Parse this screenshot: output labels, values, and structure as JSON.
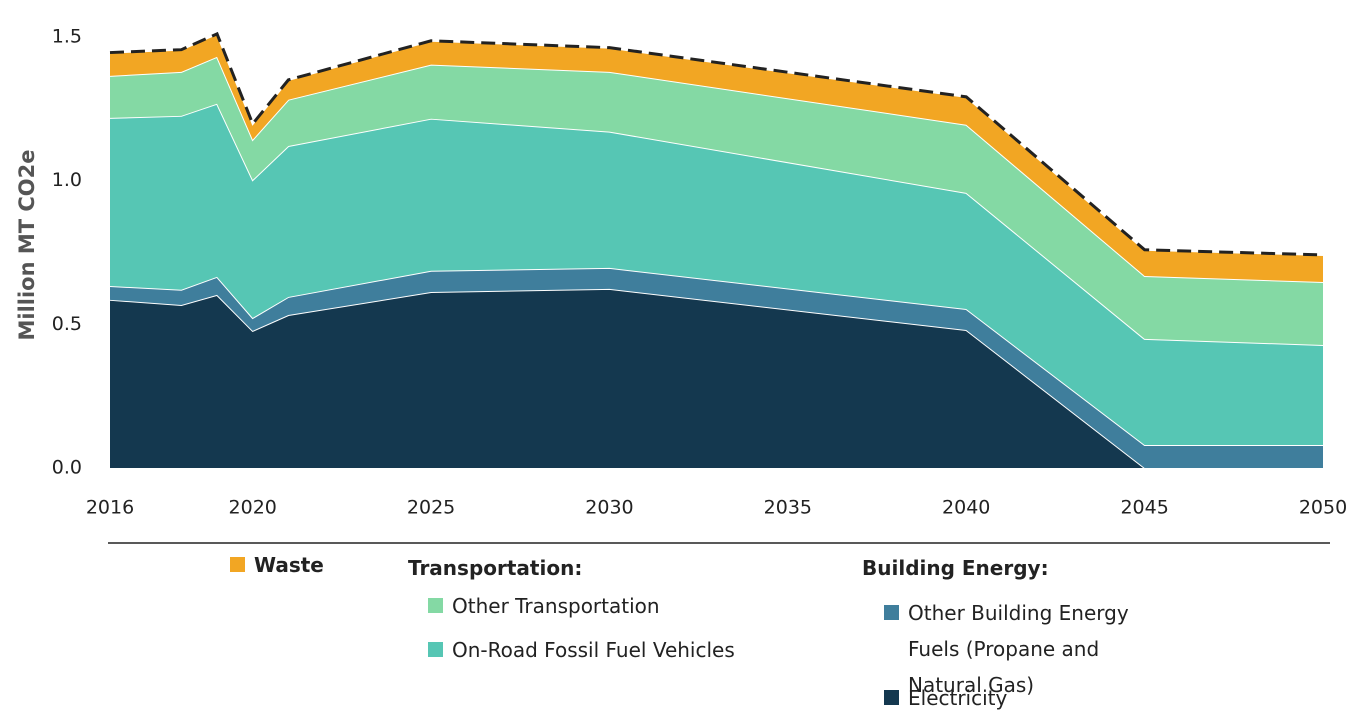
{
  "chart_data": {
    "type": "stacked_area",
    "y_label": "Million MT CO2e",
    "x": [
      2016,
      2018,
      2019,
      2020,
      2021,
      2025,
      2030,
      2040,
      2045,
      2050
    ],
    "series": [
      {
        "name": "Electricity",
        "color": "#14384f",
        "values": [
          0.585,
          0.567,
          0.602,
          0.477,
          0.532,
          0.612,
          0.623,
          0.48,
          0,
          0
        ]
      },
      {
        "name": "Other Building Energy Fuels (Propane and Natural Gas)",
        "color": "#3f7e9c",
        "values": [
          0.048,
          0.053,
          0.063,
          0.045,
          0.063,
          0.074,
          0.073,
          0.073,
          0.08,
          0.08
        ]
      },
      {
        "name": "On-Road Fossil Fuel Vehicles",
        "color": "#56c6b4",
        "values": [
          0.585,
          0.605,
          0.602,
          0.48,
          0.525,
          0.529,
          0.474,
          0.404,
          0.369,
          0.348
        ]
      },
      {
        "name": "Other Transportation",
        "color": "#84d9a4",
        "values": [
          0.146,
          0.153,
          0.163,
          0.14,
          0.161,
          0.188,
          0.208,
          0.237,
          0.219,
          0.219
        ]
      },
      {
        "name": "Waste",
        "color": "#f2a623",
        "values": [
          0.081,
          0.077,
          0.08,
          0.055,
          0.069,
          0.083,
          0.084,
          0.097,
          0.091,
          0.094
        ]
      }
    ],
    "legend_headings": [
      "Transportation:",
      "Building Energy:"
    ],
    "xlim": [
      2016,
      2050
    ],
    "xticks": [
      2016,
      2020,
      2025,
      2030,
      2035,
      2040,
      2045,
      2050
    ],
    "ylim": [
      0,
      1.6
    ],
    "yticks": [
      {
        "value": 0,
        "label": "0.0"
      },
      0.5,
      {
        "value": 1,
        "label": "1.0"
      },
      1.5
    ],
    "dashed_total": true
  }
}
